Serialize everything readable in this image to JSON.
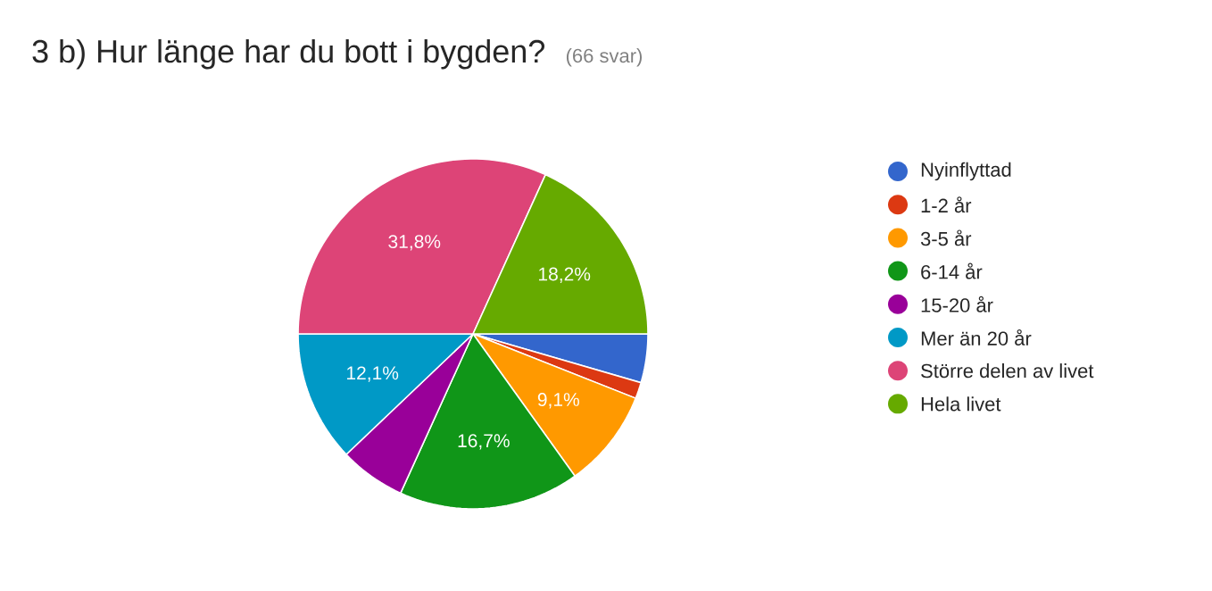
{
  "chart_data": {
    "type": "pie",
    "title": "3 b) Hur länge har du bott i bygden?",
    "subtitle": "(66 svar)",
    "categories": [
      "Nyinflyttad",
      "1-2 år",
      "3-5 år",
      "6-14 år",
      "15-20 år",
      "Mer än 20 år",
      "Större delen av livet",
      "Hela livet"
    ],
    "values": [
      4.5,
      1.5,
      9.1,
      16.7,
      6.1,
      12.1,
      31.8,
      18.2
    ],
    "value_labels": [
      null,
      null,
      "9,1%",
      "16,7%",
      null,
      "12,1%",
      "31,8%",
      "18,2%"
    ],
    "colors": [
      "#3366cc",
      "#dc3912",
      "#ff9900",
      "#109618",
      "#990099",
      "#0099c6",
      "#dd4477",
      "#66aa00"
    ],
    "legend": "right"
  }
}
